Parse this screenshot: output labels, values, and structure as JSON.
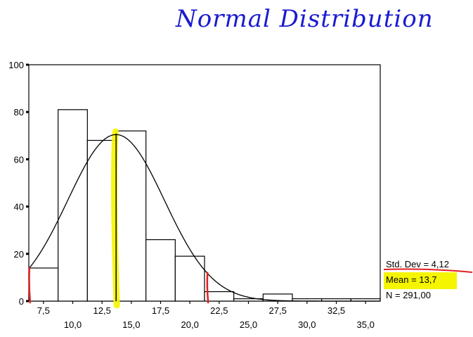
{
  "chart_data": {
    "type": "bar",
    "title": "Normal Distribution",
    "bins": [
      {
        "x0": 6.25,
        "x1": 8.75,
        "count": 14
      },
      {
        "x0": 8.75,
        "x1": 11.25,
        "count": 81
      },
      {
        "x0": 11.25,
        "x1": 13.75,
        "count": 68
      },
      {
        "x0": 13.75,
        "x1": 16.25,
        "count": 72
      },
      {
        "x0": 16.25,
        "x1": 18.75,
        "count": 26
      },
      {
        "x0": 18.75,
        "x1": 21.25,
        "count": 19
      },
      {
        "x0": 21.25,
        "x1": 23.75,
        "count": 4
      },
      {
        "x0": 23.75,
        "x1": 26.25,
        "count": 1
      },
      {
        "x0": 26.25,
        "x1": 28.75,
        "count": 3
      },
      {
        "x0": 28.75,
        "x1": 31.25,
        "count": 1
      },
      {
        "x0": 31.25,
        "x1": 33.75,
        "count": 1
      },
      {
        "x0": 33.75,
        "x1": 36.25,
        "count": 1
      }
    ],
    "normal_curve": {
      "mean": 13.7,
      "std_dev": 4.12,
      "n": 291,
      "bin_width": 2.5
    },
    "xlim": [
      6.25,
      36.25
    ],
    "ylim": [
      0,
      100
    ],
    "y_ticks": [
      0,
      20,
      40,
      60,
      80,
      100
    ],
    "y_tick_labels": [
      "0",
      "20",
      "40",
      "60",
      "80",
      "100"
    ],
    "x_ticks_upper": [
      7.5,
      12.5,
      17.5,
      22.5,
      27.5,
      32.5
    ],
    "x_tick_labels_upper": [
      "7,5",
      "12,5",
      "17,5",
      "22,5",
      "27,5",
      "32,5"
    ],
    "x_ticks_lower": [
      10,
      15,
      20,
      25,
      30,
      35
    ],
    "x_tick_labels_lower": [
      "10,0",
      "15,0",
      "20,0",
      "25,0",
      "30,0",
      "35,0"
    ],
    "stats": {
      "std_dev_label": "Std. Dev = 4,12",
      "mean_label": "Mean = 13,7",
      "n_label": "N = 291,00"
    },
    "annotations": {
      "mean_marker_x": 13.7,
      "tail_markers_x": [
        6.3,
        21.5
      ],
      "highlight_color": "#f5f500",
      "marker_color": "#e02020"
    }
  }
}
